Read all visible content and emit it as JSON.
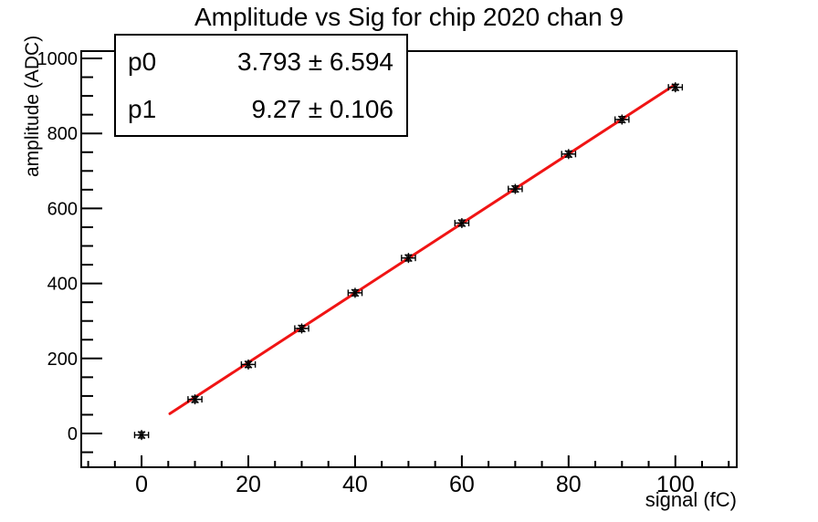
{
  "title": "Amplitude vs Sig for chip 2020 chan 9",
  "stats_box": {
    "rows": [
      {
        "param": "p0",
        "value": 3.793,
        "error": 6.594,
        "value_text": "3.793 ± 6.594"
      },
      {
        "param": "p1",
        "value": 9.27,
        "error": 0.106,
        "value_text": "9.27 ± 0.106"
      }
    ]
  },
  "colors": {
    "background": "#ffffff",
    "axis": "#000000",
    "marker": "#000000",
    "fit_line": "#f01414"
  },
  "chart_data": {
    "type": "scatter",
    "title": "Amplitude vs Sig for chip 2020 chan 9",
    "xlabel": "signal (fC)",
    "ylabel": "amplitude (ADC)",
    "x": [
      0,
      10,
      20,
      30,
      40,
      50,
      60,
      70,
      80,
      90,
      100
    ],
    "y": [
      -4,
      91,
      184,
      280,
      375,
      468,
      561,
      652,
      745,
      837,
      923
    ],
    "x_err": 1.3,
    "y_err": 8,
    "xlim": [
      -11.3,
      111.5
    ],
    "ylim": [
      -90,
      1019.5
    ],
    "x_ticks": [
      0,
      20,
      40,
      60,
      80,
      100
    ],
    "x_minor_step": 5,
    "y_ticks": [
      0,
      200,
      400,
      600,
      800,
      1000
    ],
    "y_minor_step": 50,
    "grid": false,
    "legend_position": "none",
    "marker_style": "asterisk-with-error-bars",
    "fit": {
      "model": "p0 + p1*x",
      "p0": 3.793,
      "p1": 9.27,
      "range": [
        5.3,
        99.8
      ]
    }
  }
}
